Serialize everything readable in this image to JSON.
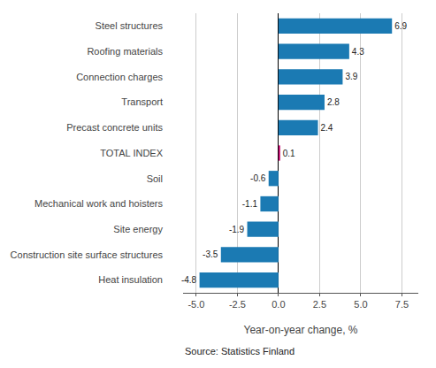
{
  "chart_data": {
    "type": "bar",
    "orientation": "horizontal",
    "categories": [
      "Heat insulation",
      "Construction site surface structures",
      "Site energy",
      "Mechanical work and hoisters",
      "Soil",
      "TOTAL INDEX",
      "Precast concrete units",
      "Transport",
      "Connection charges",
      "Roofing materials",
      "Steel structures"
    ],
    "values": [
      -4.8,
      -3.5,
      -1.9,
      -1.1,
      -0.6,
      0.1,
      2.4,
      2.8,
      3.9,
      4.3,
      6.9
    ],
    "colors": [
      "#1b7ab3",
      "#1b7ab3",
      "#1b7ab3",
      "#1b7ab3",
      "#1b7ab3",
      "#c0006a",
      "#1b7ab3",
      "#1b7ab3",
      "#1b7ab3",
      "#1b7ab3",
      "#1b7ab3"
    ],
    "xlabel": "Year-on-year change, %",
    "xlim": [
      -5.8,
      8.5
    ],
    "xticks": [
      {
        "value": -5.0,
        "label": "-5.0"
      },
      -2.5,
      {
        "value": 0.0,
        "label": "0.0"
      },
      2.5,
      {
        "value": 5.0,
        "label": "5.0"
      },
      7.5
    ],
    "grid": true,
    "data_labels": true,
    "annotations": [
      "Source: Statistics Finland"
    ]
  }
}
